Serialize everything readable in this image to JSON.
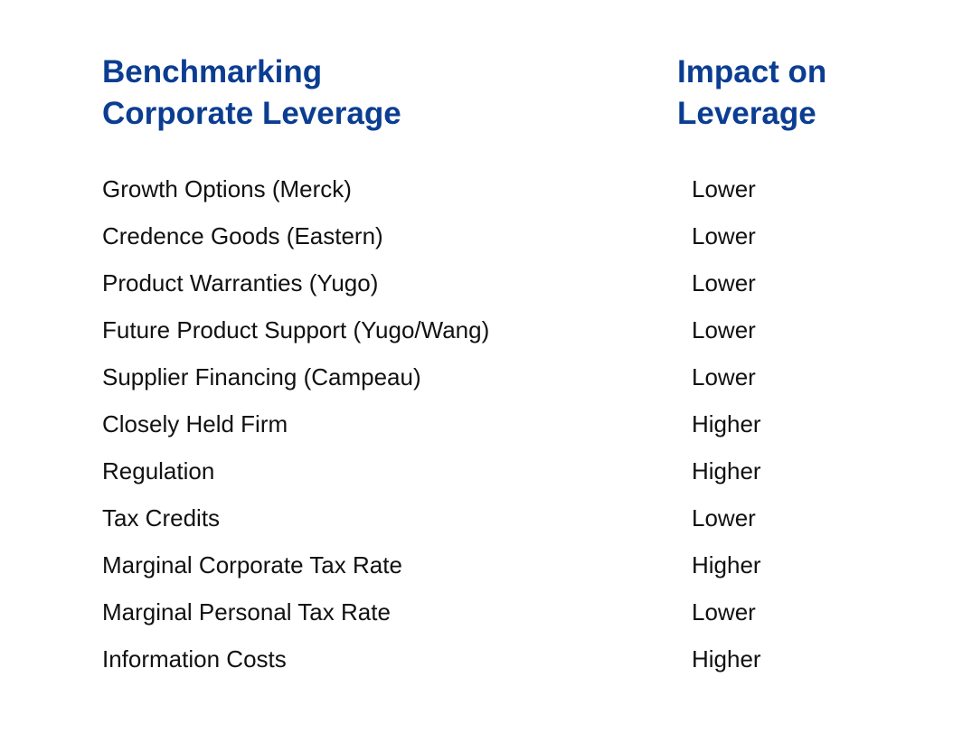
{
  "header": {
    "left_title_lines": [
      "Benchmarking",
      "Corporate Leverage"
    ],
    "right_title_lines": [
      "Impact on",
      "Leverage"
    ]
  },
  "rows": [
    {
      "factor": "Growth Options (Merck)",
      "impact": "Lower"
    },
    {
      "factor": "Credence Goods (Eastern)",
      "impact": "Lower"
    },
    {
      "factor": "Product Warranties (Yugo)",
      "impact": "Lower"
    },
    {
      "factor": "Future Product Support (Yugo/Wang)",
      "impact": "Lower"
    },
    {
      "factor": "Supplier Financing (Campeau)",
      "impact": "Lower"
    },
    {
      "factor": "Closely Held Firm",
      "impact": "Higher"
    },
    {
      "factor": "Regulation",
      "impact": "Higher"
    },
    {
      "factor": "Tax Credits",
      "impact": "Lower"
    },
    {
      "factor": "Marginal Corporate Tax Rate",
      "impact": "Higher"
    },
    {
      "factor": "Marginal Personal Tax Rate",
      "impact": "Lower"
    },
    {
      "factor": "Information Costs",
      "impact": "Higher"
    }
  ],
  "colors": {
    "heading": "#0b3d91",
    "body_text": "#111111",
    "background": "#ffffff"
  }
}
